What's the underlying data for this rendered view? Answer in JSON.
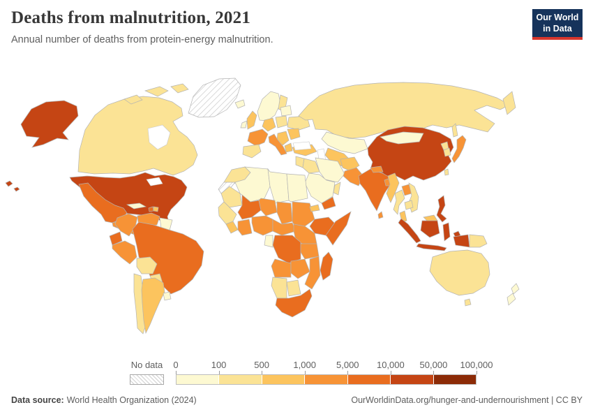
{
  "header": {
    "title": "Deaths from malnutrition, 2021",
    "subtitle": "Annual number of deaths from protein-energy malnutrition."
  },
  "logo": {
    "line1": "Our World",
    "line2": "in Data",
    "bg": "#16335b",
    "accent": "#d8362d"
  },
  "legend": {
    "no_data_label": "No data",
    "ticks": [
      "0",
      "100",
      "500",
      "1,000",
      "5,000",
      "10,000",
      "50,000",
      "100,000"
    ],
    "colors": [
      "#fdf9d2",
      "#fbe395",
      "#fcc45e",
      "#f79336",
      "#e96d1f",
      "#c54514",
      "#8c2b07"
    ]
  },
  "footer": {
    "source_label": "Data source:",
    "source": "World Health Organization (2024)",
    "credit": "OurWorldinData.org/hunger-and-undernourishment | CC BY"
  },
  "chart_data": {
    "type": "choropleth",
    "title": "Deaths from malnutrition, 2021",
    "subtitle": "Annual number of deaths from protein-energy malnutrition.",
    "unit": "deaths",
    "scale_type": "binned",
    "scale_ticks": [
      0,
      100,
      500,
      1000,
      5000,
      10000,
      50000,
      100000
    ],
    "bin_ranges": {
      "1": "0-100",
      "2": "100-500",
      "3": "500-1,000",
      "4": "1,000-5,000",
      "5": "5,000-10,000",
      "6": "10,000-50,000",
      "7": "50,000-100,000"
    },
    "no_data_regions": [
      "Greenland",
      "Western Sahara"
    ],
    "regions": {
      "alaska": 6,
      "canada": 2,
      "canada-arctic": 2,
      "greenland": "no-data",
      "usa": 6,
      "hawaii": 6,
      "mexico": 5,
      "central-america": 4,
      "cuba": 1,
      "haiti": 5,
      "dominican-republic": 3,
      "colombia": 4,
      "venezuela": 4,
      "guyanas": 1,
      "ecuador": 5,
      "peru": 4,
      "brazil": 5,
      "bolivia": 2,
      "paraguay": 2,
      "chile": 2,
      "argentina": 3,
      "uruguay": 1,
      "iceland": 1,
      "scandinavia": 1,
      "finland": 2,
      "uk": 3,
      "ireland": 1,
      "france": 4,
      "spain": 2,
      "germany": 3,
      "poland": 2,
      "baltics": 1,
      "ukraine": 2,
      "romania": 3,
      "balkans": 3,
      "greece": 3,
      "italy": 4,
      "turkey": 3,
      "russia": 2,
      "kamchatka": 2,
      "sakhalin": 2,
      "kazakhstan": 1,
      "central-asia": 3,
      "levant": 2,
      "iraq": 2,
      "iran": 1,
      "saudi-arabia": 1,
      "yemen": 5,
      "oman": 2,
      "morocco": 2,
      "western-sahara": "no-data",
      "algeria": 1,
      "libya": 1,
      "egypt": 1,
      "mauritania": 2,
      "mali": 5,
      "niger": 4,
      "chad": 4,
      "sudan": 4,
      "eritrea": 3,
      "ethiopia": 5,
      "somalia": 5,
      "senegal-guinea": 2,
      "sierra-leone-liberia": 3,
      "ivory-coast-ghana": 4,
      "nigeria": 4,
      "cameroon-car": 4,
      "south-sudan-kenya": 4,
      "gabon-congo": 1,
      "drc": 5,
      "tanzania": 4,
      "angola": 4,
      "zambia-zimbabwe": 4,
      "mozambique": 4,
      "namibia": 2,
      "botswana": 2,
      "south-africa": 5,
      "madagascar": 5,
      "afghanistan": 3,
      "pakistan": 4,
      "india": 5,
      "nepal": 4,
      "bangladesh": 4,
      "sri-lanka": 4,
      "china": 6,
      "mongolia": 1,
      "north-korea": 2,
      "south-korea": 2,
      "japan": 4,
      "taiwan": 2,
      "myanmar": 3,
      "thailand": 2,
      "laos": 4,
      "vietnam": 2,
      "cambodia": 2,
      "malaysia": 3,
      "sumatra": 6,
      "java": 6,
      "borneo-malaysia": 3,
      "kalimantan": 6,
      "sulawesi": 6,
      "maluku": 6,
      "philippines": 6,
      "papua-indonesia": 6,
      "papua-new-guinea": 2,
      "australia": 2,
      "tasmania": 2,
      "new-zealand": 1
    }
  }
}
